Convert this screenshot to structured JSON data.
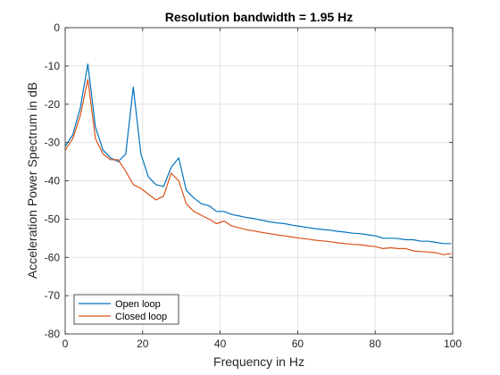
{
  "chart_data": {
    "type": "line",
    "title": "Resolution bandwidth = 1.95 Hz",
    "xlabel": "Frequency in Hz",
    "ylabel": "Acceleration Power Spectrum in dB",
    "xlim": [
      0,
      100
    ],
    "ylim": [
      -80,
      0
    ],
    "xticks": [
      "0",
      "20",
      "40",
      "60",
      "80",
      "100"
    ],
    "yticks": [
      "0",
      "-10",
      "-20",
      "-30",
      "-40",
      "-50",
      "-60",
      "-70",
      "-80"
    ],
    "grid": true,
    "legend_position": "bottom-left",
    "series": [
      {
        "name": "Open loop",
        "color": "#0072BD",
        "x": [
          0,
          1.95,
          3.9,
          5.86,
          7.81,
          9.77,
          11.72,
          13.67,
          15.63,
          17.58,
          19.53,
          21.48,
          23.44,
          25.39,
          27.34,
          29.3,
          31.25,
          33.2,
          35.16,
          37.11,
          39.06,
          41.02,
          42.97,
          44.92,
          46.88,
          48.83,
          50.78,
          52.73,
          54.69,
          56.64,
          58.59,
          60.55,
          62.5,
          64.45,
          66.41,
          68.36,
          70.31,
          72.27,
          74.22,
          76.17,
          78.13,
          80.08,
          82.03,
          83.98,
          85.94,
          87.89,
          89.84,
          91.8,
          93.75,
          95.7,
          97.66,
          99.61
        ],
        "values": [
          -31,
          -28,
          -21,
          -9.5,
          -26,
          -32,
          -34,
          -35,
          -33,
          -15.5,
          -33,
          -39,
          -41,
          -41.5,
          -36.5,
          -34,
          -42.5,
          -44.5,
          -46,
          -46.5,
          -48,
          -48,
          -48.8,
          -49.2,
          -49.6,
          -49.9,
          -50.3,
          -50.7,
          -51,
          -51.2,
          -51.6,
          -51.9,
          -52.2,
          -52.5,
          -52.7,
          -52.9,
          -53.2,
          -53.4,
          -53.7,
          -53.8,
          -54.1,
          -54.4,
          -55,
          -55,
          -55.1,
          -55.4,
          -55.4,
          -55.8,
          -55.8,
          -56.1,
          -56.4,
          -56.4
        ]
      },
      {
        "name": "Closed loop",
        "color": "#D95319",
        "x": [
          0,
          1.95,
          3.9,
          5.86,
          7.81,
          9.77,
          11.72,
          13.67,
          15.63,
          17.58,
          19.53,
          21.48,
          23.44,
          25.39,
          27.34,
          29.3,
          31.25,
          33.2,
          35.16,
          37.11,
          39.06,
          41.02,
          42.97,
          44.92,
          46.88,
          48.83,
          50.78,
          52.73,
          54.69,
          56.64,
          58.59,
          60.55,
          62.5,
          64.45,
          66.41,
          68.36,
          70.31,
          72.27,
          74.22,
          76.17,
          78.13,
          80.08,
          82.03,
          83.98,
          85.94,
          87.89,
          89.84,
          91.8,
          93.75,
          95.7,
          97.66,
          99.61
        ],
        "values": [
          -32,
          -29,
          -23,
          -13.5,
          -29,
          -33,
          -34.5,
          -34.5,
          -37.5,
          -41,
          -42,
          -43.5,
          -45,
          -44,
          -38,
          -40,
          -46,
          -48,
          -49,
          -50,
          -51.2,
          -50.5,
          -51.8,
          -52.3,
          -52.8,
          -53.1,
          -53.5,
          -53.8,
          -54.1,
          -54.4,
          -54.7,
          -55,
          -55.2,
          -55.5,
          -55.7,
          -55.9,
          -56.2,
          -56.4,
          -56.6,
          -56.7,
          -57,
          -57.2,
          -57.7,
          -57.5,
          -57.7,
          -57.7,
          -58.3,
          -58.5,
          -58.6,
          -58.8,
          -59.3,
          -59
        ]
      }
    ]
  }
}
